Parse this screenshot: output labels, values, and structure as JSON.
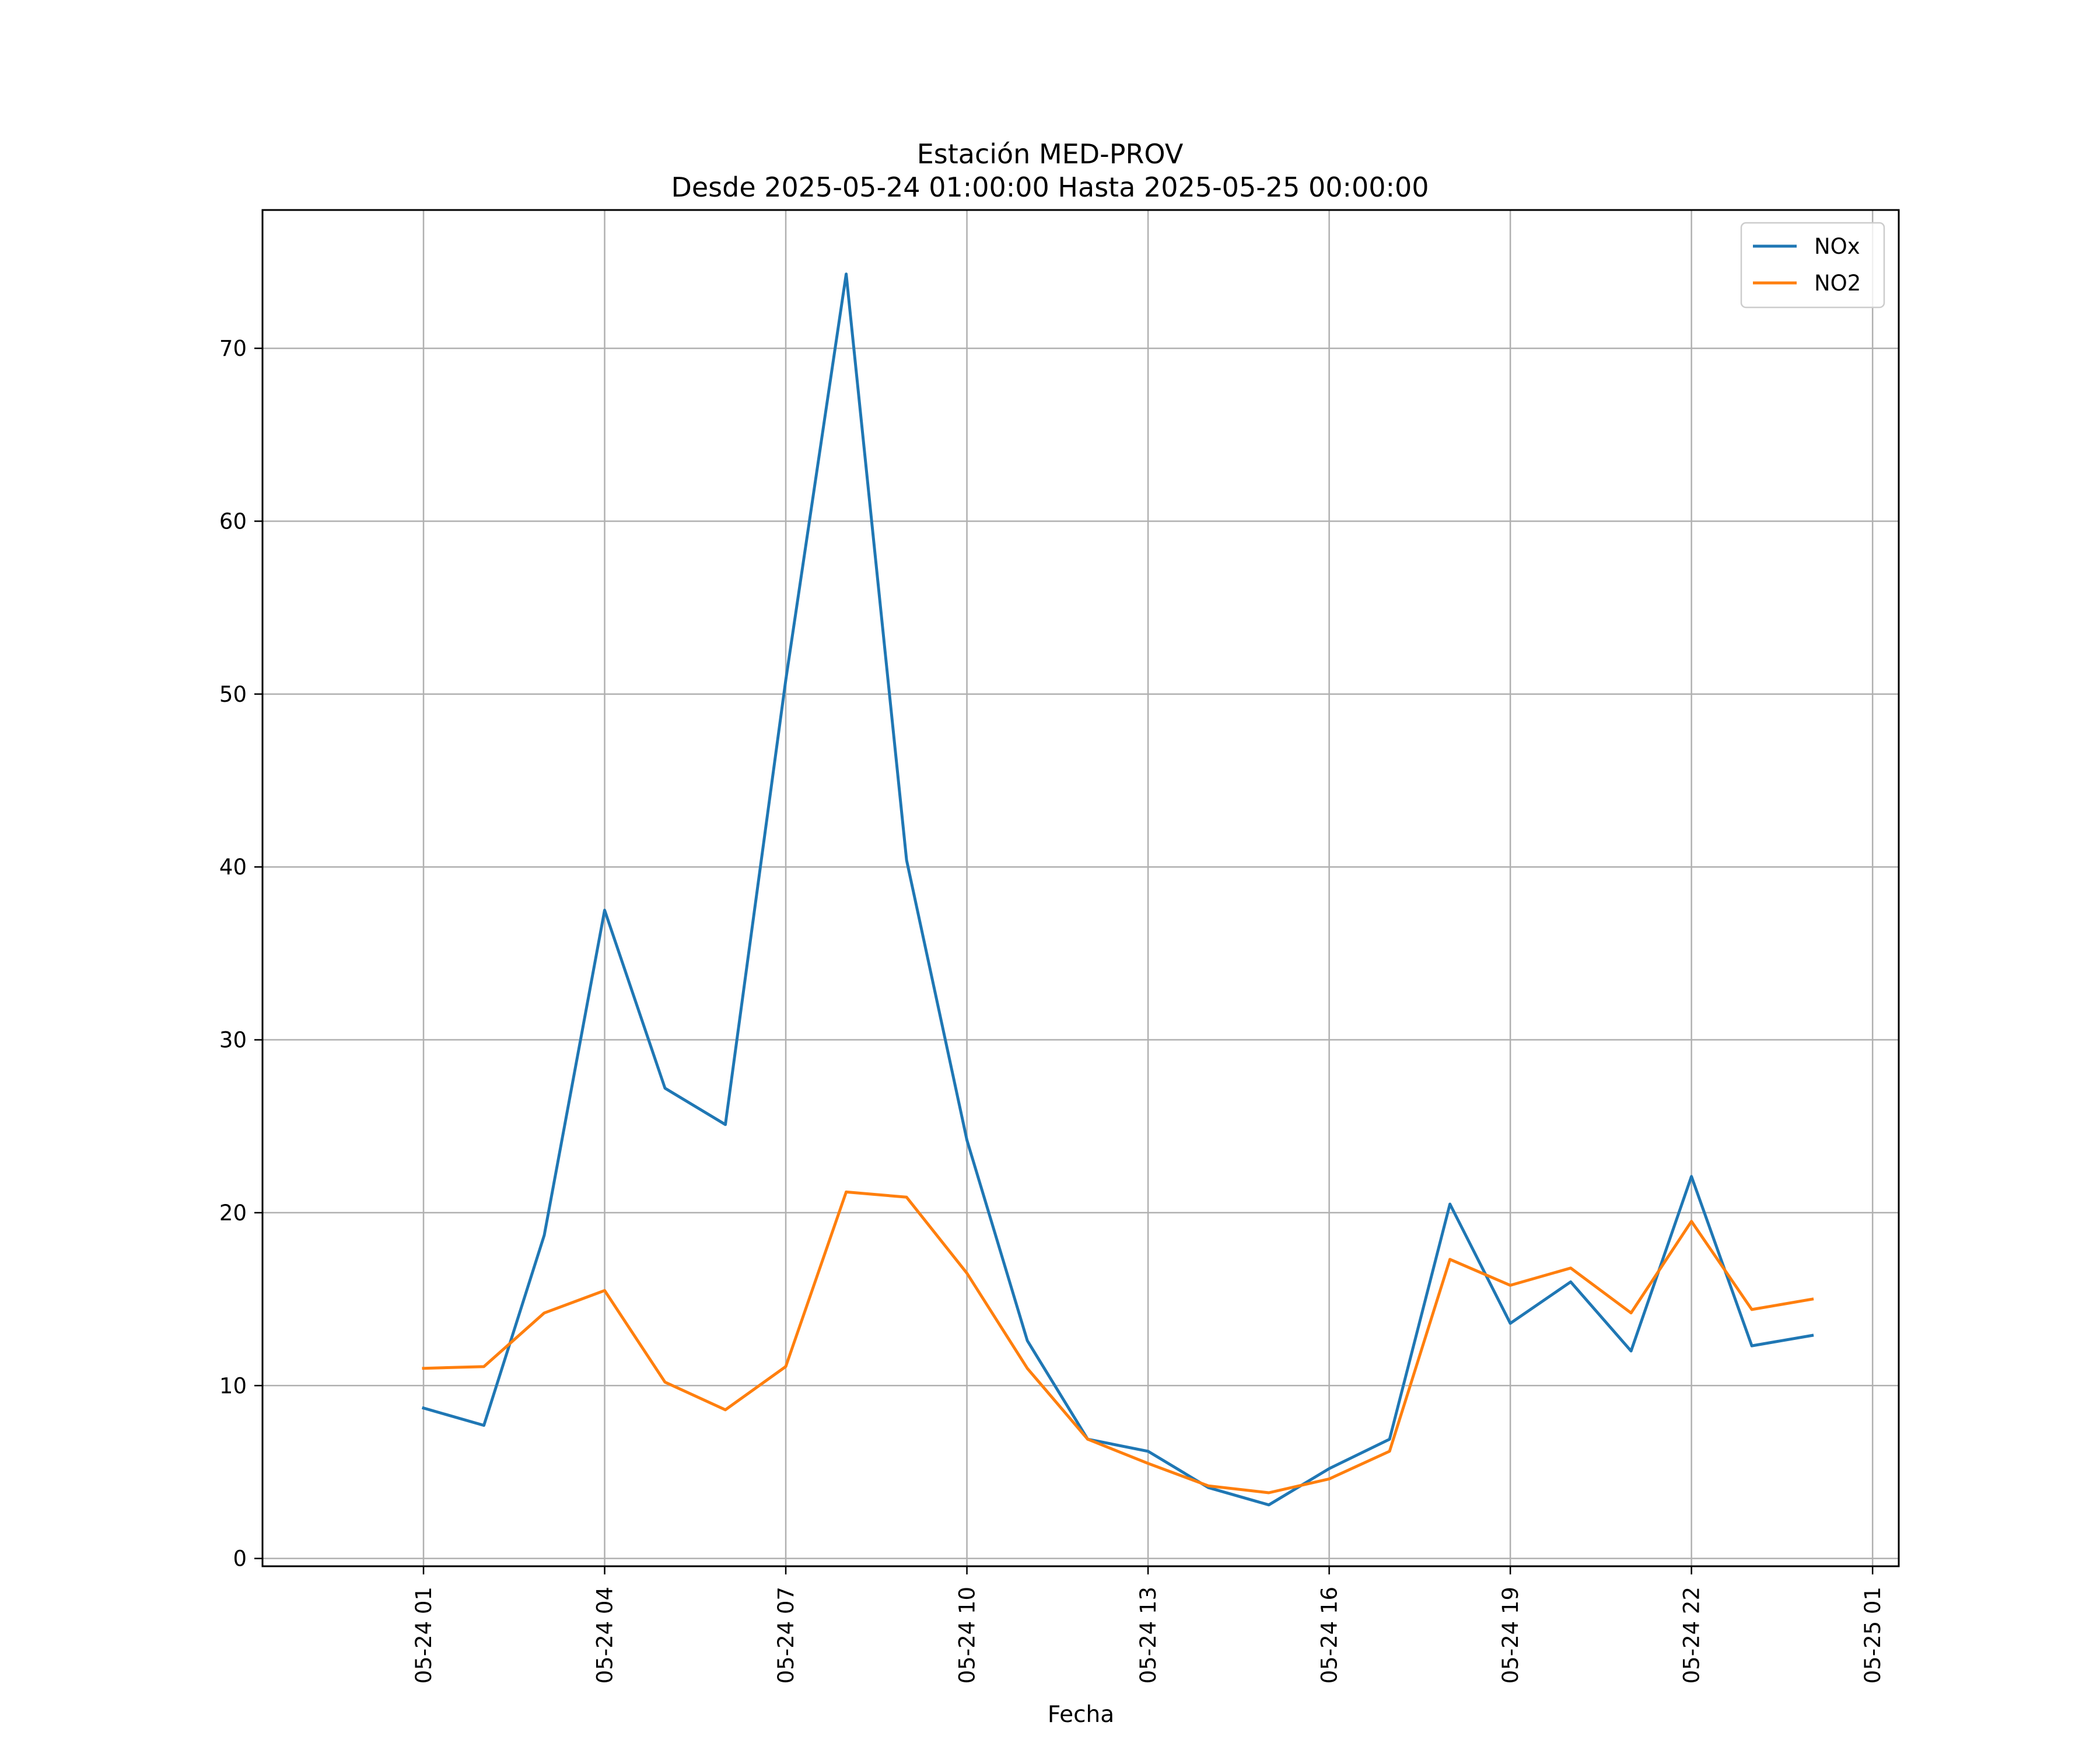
{
  "chart_data": {
    "type": "line",
    "title": "Estación MED-PROV",
    "subtitle": "Desde 2025-05-24 01:00:00 Hasta 2025-05-25 00:00:00",
    "xlabel": "Fecha",
    "ylabel": "",
    "x": [
      "2025-05-24 01:00",
      "2025-05-24 02:00",
      "2025-05-24 03:00",
      "2025-05-24 04:00",
      "2025-05-24 05:00",
      "2025-05-24 06:00",
      "2025-05-24 07:00",
      "2025-05-24 08:00",
      "2025-05-24 09:00",
      "2025-05-24 10:00",
      "2025-05-24 11:00",
      "2025-05-24 12:00",
      "2025-05-24 13:00",
      "2025-05-24 14:00",
      "2025-05-24 15:00",
      "2025-05-24 16:00",
      "2025-05-24 17:00",
      "2025-05-24 18:00",
      "2025-05-24 19:00",
      "2025-05-24 20:00",
      "2025-05-24 21:00",
      "2025-05-24 22:00",
      "2025-05-24 23:00",
      "2025-05-25 00:00"
    ],
    "series": [
      {
        "name": "NOx",
        "color": "#1f77b4",
        "values": [
          8.7,
          7.7,
          18.7,
          37.5,
          27.2,
          25.1,
          50.8,
          74.3,
          40.4,
          24.2,
          12.6,
          6.9,
          6.2,
          4.1,
          3.1,
          5.2,
          6.9,
          20.5,
          13.6,
          16.0,
          12.0,
          22.1,
          12.3,
          12.9
        ]
      },
      {
        "name": "NO2",
        "color": "#ff7f0e",
        "values": [
          11.0,
          11.1,
          14.2,
          15.5,
          10.2,
          8.6,
          11.1,
          21.2,
          20.9,
          16.5,
          11.0,
          6.9,
          5.5,
          4.2,
          3.8,
          4.6,
          6.2,
          17.3,
          15.8,
          16.8,
          14.2,
          19.5,
          14.4,
          15.0
        ]
      }
    ],
    "x_ticks": [
      "05-24 01",
      "05-24 04",
      "05-24 07",
      "05-24 10",
      "05-24 13",
      "05-24 16",
      "05-24 19",
      "05-24 22",
      "05-25 01"
    ],
    "x_range": [
      "2025-05-23 22:20",
      "2025-05-25 01:26"
    ],
    "y_ticks": [
      0,
      10,
      20,
      30,
      40,
      50,
      60,
      70
    ],
    "ylim": [
      -0.45,
      78.0
    ],
    "grid": true,
    "legend_position": "upper right"
  }
}
